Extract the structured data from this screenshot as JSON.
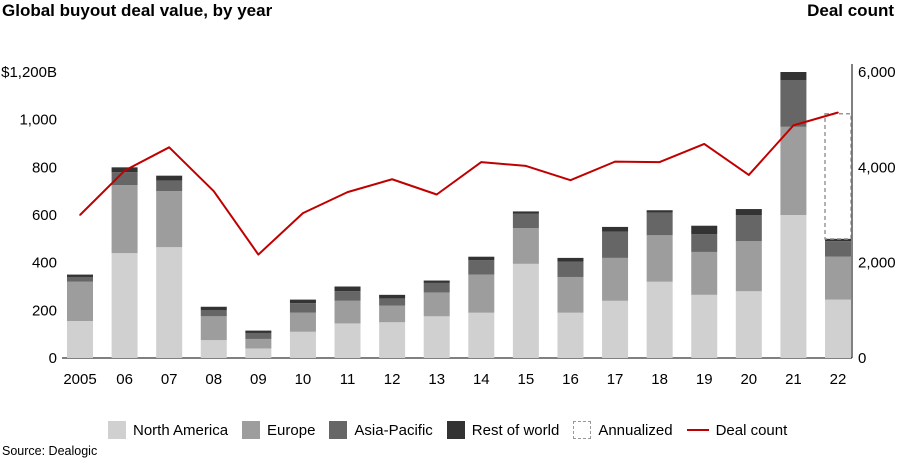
{
  "header": {
    "title": "Global buyout deal value, by year",
    "right_title": "Deal count"
  },
  "source": "Source: Dealogic",
  "legend": {
    "north_america": "North America",
    "europe": "Europe",
    "asia_pacific": "Asia-Pacific",
    "rest_of_world": "Rest of world",
    "annualized": "Annualized",
    "deal_count": "Deal count"
  },
  "colors": {
    "north_america": "#d0d0d0",
    "europe": "#9d9d9d",
    "asia_pacific": "#666666",
    "rest_of_world": "#333333",
    "deal_count": "#c00000",
    "annualized_border": "#999999"
  },
  "chart_data": {
    "type": "bar",
    "stacked": true,
    "categories": [
      "2005",
      "06",
      "07",
      "08",
      "09",
      "10",
      "11",
      "12",
      "13",
      "14",
      "15",
      "16",
      "17",
      "18",
      "19",
      "20",
      "21",
      "22"
    ],
    "series": [
      {
        "name": "North America",
        "values": [
          155,
          440,
          465,
          75,
          40,
          110,
          145,
          150,
          175,
          190,
          395,
          190,
          240,
          320,
          265,
          280,
          600,
          245
        ]
      },
      {
        "name": "Europe",
        "values": [
          165,
          285,
          235,
          100,
          40,
          80,
          95,
          70,
          100,
          160,
          150,
          150,
          180,
          195,
          180,
          210,
          370,
          180
        ]
      },
      {
        "name": "Asia-Pacific",
        "values": [
          20,
          55,
          45,
          25,
          25,
          40,
          40,
          30,
          40,
          60,
          60,
          65,
          110,
          95,
          75,
          110,
          195,
          65
        ]
      },
      {
        "name": "Rest of world",
        "values": [
          10,
          20,
          20,
          15,
          10,
          15,
          20,
          15,
          10,
          15,
          10,
          15,
          20,
          10,
          35,
          25,
          35,
          10
        ]
      }
    ],
    "annualized": {
      "category": "22",
      "from": 500,
      "to": 1025
    },
    "line_series": {
      "name": "Deal count",
      "axis": "right",
      "values": [
        3000,
        3930,
        4420,
        3500,
        2170,
        3040,
        3480,
        3750,
        3430,
        4110,
        4030,
        3730,
        4120,
        4110,
        4490,
        3840,
        4880,
        5150
      ]
    },
    "y_left": {
      "ticks": [
        "0",
        "200",
        "400",
        "600",
        "800",
        "1,000",
        "$1,200B"
      ],
      "ylim": [
        0,
        1200
      ]
    },
    "y_right": {
      "ticks": [
        "0",
        "2,000",
        "4,000",
        "6,000"
      ],
      "ylim": [
        0,
        6000
      ]
    }
  }
}
